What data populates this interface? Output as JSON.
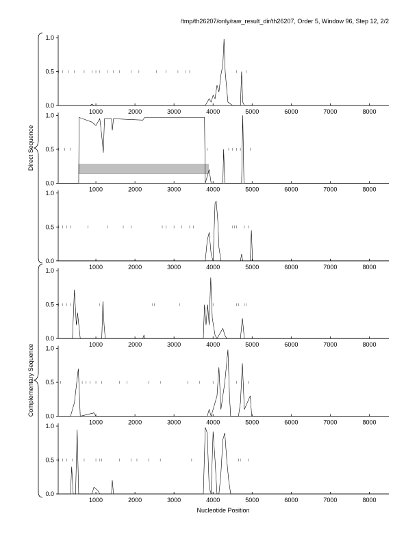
{
  "header": {
    "title": "/tmp/th26207/only/raw_result_dir/th26207, Order 5, Window 96, Step 12, 2/2"
  },
  "side_labels": [
    "Direct Sequence",
    "Complementary Sequence"
  ],
  "x_label": "Nucleotide Position",
  "chart_data": [
    {
      "type": "line",
      "color": "#000000",
      "xlim": [
        0,
        8500
      ],
      "ylim": [
        0,
        1
      ],
      "xticks": [
        1000,
        2000,
        3000,
        4000,
        5000,
        6000,
        7000,
        8000
      ],
      "yticks": [
        {
          "value": 0,
          "label": "0.0"
        },
        {
          "value": 0.5,
          "label": "0.5"
        },
        {
          "value": 1,
          "label": "1.0"
        }
      ],
      "x": [
        0,
        850,
        900,
        950,
        3800,
        3900,
        3950,
        4000,
        4050,
        4100,
        4150,
        4200,
        4250,
        4280,
        4310,
        4340,
        4380,
        4500,
        4700,
        4730,
        4760,
        4800,
        8500
      ],
      "values": [
        0,
        0,
        0.02,
        0,
        0,
        0.1,
        0.05,
        0.15,
        0.1,
        0.3,
        0.2,
        0.45,
        0.6,
        0.98,
        0.5,
        0.3,
        0.05,
        0,
        0,
        0.5,
        0.05,
        0,
        0
      ],
      "marker_level": 0.5,
      "markers": [
        50,
        150,
        300,
        450,
        700,
        900,
        1000,
        1100,
        1300,
        1450,
        1600,
        1900,
        2100,
        2550,
        2800,
        3100,
        3300,
        3400,
        4600,
        4850
      ]
    },
    {
      "type": "line",
      "color": "#000000",
      "xlim": [
        0,
        8500
      ],
      "ylim": [
        0,
        1
      ],
      "xticks": [
        1000,
        2000,
        3000,
        4000,
        5000,
        6000,
        7000,
        8000
      ],
      "yticks": [
        {
          "value": 0,
          "label": "0.0"
        },
        {
          "value": 0.5,
          "label": "0.5"
        },
        {
          "value": 1,
          "label": "1.0"
        }
      ],
      "x": [
        0,
        560,
        570,
        900,
        1000,
        1100,
        1150,
        1190,
        1220,
        1400,
        1420,
        1450,
        2200,
        2250,
        3780,
        3800,
        3900,
        3950,
        4250,
        4270,
        4300,
        4730,
        4760,
        4790,
        8500
      ],
      "values": [
        0,
        0,
        0.97,
        0.9,
        0.85,
        0.95,
        0.7,
        0.45,
        0.95,
        0.95,
        0.78,
        0.95,
        0.93,
        0.97,
        0.97,
        0,
        0.2,
        0,
        0,
        0.5,
        0,
        0,
        1.0,
        0,
        0
      ],
      "marker_level": 0.5,
      "markers": [
        50,
        200,
        350,
        3850,
        4400,
        4500,
        4600,
        4700,
        4950
      ],
      "regions": [
        {
          "start": 560,
          "end": 3880,
          "low": 0.14,
          "high": 0.28,
          "color": "#c0c0c0"
        }
      ]
    },
    {
      "type": "line",
      "color": "#000000",
      "xlim": [
        0,
        8500
      ],
      "ylim": [
        0,
        1
      ],
      "xticks": [
        1000,
        2000,
        3000,
        4000,
        5000,
        6000,
        7000,
        8000
      ],
      "yticks": [
        {
          "value": 0,
          "label": "0.0"
        },
        {
          "value": 0.5,
          "label": "0.5"
        },
        {
          "value": 1,
          "label": "1.0"
        }
      ],
      "x": [
        0,
        3800,
        3850,
        3900,
        3950,
        4000,
        4050,
        4080,
        4120,
        4150,
        4200,
        4700,
        4730,
        4760,
        4950,
        4980,
        5010,
        8500
      ],
      "values": [
        0,
        0,
        0.3,
        0.42,
        0.1,
        0,
        0.85,
        0.88,
        0.6,
        0.2,
        0,
        0,
        0.1,
        0,
        0,
        0.45,
        0,
        0
      ],
      "marker_level": 0.5,
      "markers": [
        50,
        150,
        250,
        350,
        800,
        1300,
        1700,
        1900,
        2700,
        2800,
        3000,
        3200,
        3400,
        3500,
        4500,
        4550,
        4600,
        4800,
        4900
      ]
    },
    {
      "type": "line",
      "color": "#000000",
      "xlim": [
        0,
        8500
      ],
      "ylim": [
        0,
        1
      ],
      "xticks": [
        1000,
        2000,
        3000,
        4000,
        5000,
        6000,
        7000,
        8000
      ],
      "yticks": [
        {
          "value": 0,
          "label": "0.0"
        },
        {
          "value": 0.5,
          "label": "0.5"
        },
        {
          "value": 1,
          "label": "1.0"
        }
      ],
      "x": [
        0,
        400,
        450,
        500,
        530,
        600,
        1150,
        1180,
        1210,
        1240,
        2200,
        2230,
        2260,
        3750,
        3780,
        3820,
        3860,
        3900,
        3940,
        3980,
        4050,
        4100,
        4250,
        4300,
        4350,
        4700,
        4750,
        4800,
        8500
      ],
      "values": [
        0,
        0,
        0.72,
        0.2,
        0.38,
        0,
        0,
        0.55,
        0.2,
        0,
        0,
        0.05,
        0,
        0,
        0.5,
        0.2,
        0.5,
        0.2,
        0.9,
        0.3,
        0.05,
        0,
        0.15,
        0.05,
        0,
        0,
        0.3,
        0,
        0
      ],
      "marker_level": 0.5,
      "markers": [
        50,
        150,
        250,
        350,
        1100,
        2450,
        2500,
        3150,
        4000,
        4600,
        4650,
        4800,
        4850
      ]
    },
    {
      "type": "line",
      "color": "#000000",
      "xlim": [
        0,
        8500
      ],
      "ylim": [
        0,
        1
      ],
      "xticks": [
        1000,
        2000,
        3000,
        4000,
        5000,
        6000,
        7000,
        8000
      ],
      "yticks": [
        {
          "value": 0,
          "label": "0.0"
        },
        {
          "value": 0.5,
          "label": "0.5"
        },
        {
          "value": 1,
          "label": "1.0"
        }
      ],
      "x": [
        0,
        350,
        450,
        500,
        550,
        600,
        950,
        1000,
        3850,
        3900,
        3950,
        4100,
        4150,
        4200,
        4300,
        4380,
        4420,
        4450,
        4650,
        4700,
        4750,
        4800,
        4950,
        4990,
        8500
      ],
      "values": [
        0,
        0,
        0.2,
        0.45,
        0.7,
        0,
        0.05,
        0,
        0,
        0.1,
        0,
        0.3,
        0.72,
        0.1,
        0.5,
        0.98,
        0.3,
        0,
        0,
        0.2,
        0.78,
        0.1,
        0.3,
        0,
        0
      ],
      "marker_level": 0.5,
      "markers": [
        100,
        650,
        750,
        850,
        1000,
        1150,
        1600,
        1800,
        2350,
        2650,
        3350,
        3650,
        4000,
        4600,
        4900
      ]
    },
    {
      "type": "line",
      "color": "#000000",
      "xlim": [
        0,
        8500
      ],
      "ylim": [
        0,
        1
      ],
      "xticks": [
        1000,
        2000,
        3000,
        4000,
        5000,
        6000,
        7000,
        8000
      ],
      "yticks": [
        {
          "value": 0,
          "label": "0.0"
        },
        {
          "value": 0.5,
          "label": "0.5"
        },
        {
          "value": 1,
          "label": "1.0"
        }
      ],
      "x": [
        0,
        350,
        380,
        420,
        480,
        520,
        560,
        900,
        950,
        1050,
        1100,
        1400,
        1420,
        1450,
        3750,
        3800,
        3850,
        3900,
        3950,
        4000,
        4050,
        4100,
        4150,
        4200,
        4250,
        4300,
        4350,
        4400,
        4450,
        8500
      ],
      "values": [
        0,
        0,
        0.4,
        0,
        0,
        0.95,
        0,
        0,
        0.1,
        0.05,
        0,
        0,
        0.2,
        0,
        0,
        0.98,
        0.9,
        0.1,
        0,
        0.92,
        0.5,
        0,
        0,
        0.3,
        0.8,
        0.9,
        0.5,
        0.2,
        0,
        0
      ],
      "marker_level": 0.5,
      "markers": [
        50,
        150,
        250,
        400,
        700,
        1000,
        1100,
        1150,
        1600,
        1900,
        2050,
        2350,
        2650,
        3450,
        4650,
        4700,
        4900
      ]
    }
  ]
}
